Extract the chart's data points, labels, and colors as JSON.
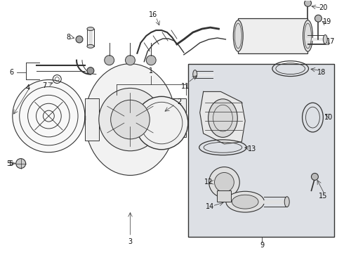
{
  "bg_color": "#ffffff",
  "line_color": "#333333",
  "label_color": "#111111",
  "box_bg": "#dde0e5",
  "fig_width": 4.9,
  "fig_height": 3.6,
  "dpi": 100
}
